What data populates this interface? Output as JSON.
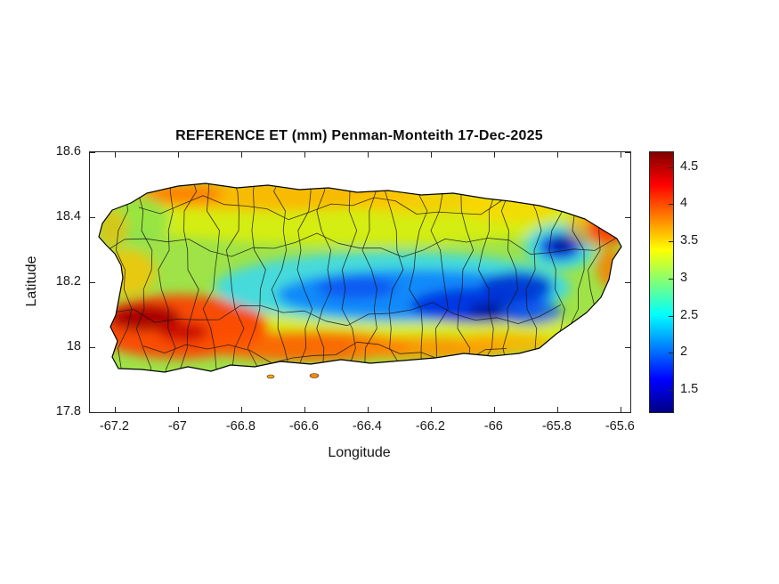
{
  "figure": {
    "title": "REFERENCE ET (mm) Penman-Monteith 17-Dec-2025",
    "xlabel": "Longitude",
    "ylabel": "Latitude"
  },
  "chart_data": {
    "type": "heatmap",
    "title": "REFERENCE ET (mm) Penman-Monteith 17-Dec-2025",
    "variable": "Reference evapotranspiration (mm)",
    "method": "Penman-Monteith",
    "date": "17-Dec-2025",
    "xlabel": "Longitude",
    "ylabel": "Latitude",
    "xlim": [
      -67.28,
      -65.57
    ],
    "ylim": [
      17.8,
      18.6
    ],
    "x_ticks": [
      -67.2,
      -67,
      -66.8,
      -66.6,
      -66.4,
      -66.2,
      -66,
      -65.8,
      -65.6
    ],
    "y_ticks": [
      17.8,
      18,
      18.2,
      18.4,
      18.6
    ],
    "grid": false,
    "geography": {
      "region": "Puerto Rico",
      "boundaries": "municipality outlines"
    },
    "colorbar": {
      "position": "right",
      "colormap": "jet",
      "range": [
        1.2,
        4.7
      ],
      "ticks": [
        1.5,
        2,
        2.5,
        3,
        3.5,
        4,
        4.5
      ],
      "jet_stops": [
        {
          "f": 0.0,
          "c": "#000085"
        },
        {
          "f": 0.125,
          "c": "#0000ff"
        },
        {
          "f": 0.375,
          "c": "#00ffff"
        },
        {
          "f": 0.5,
          "c": "#7dff7a"
        },
        {
          "f": 0.625,
          "c": "#ffff00"
        },
        {
          "f": 0.875,
          "c": "#ff0000"
        },
        {
          "f": 1.0,
          "c": "#800000"
        }
      ]
    },
    "grid_estimate": {
      "lon": [
        -67.2,
        -67.1,
        -67.0,
        -66.9,
        -66.8,
        -66.7,
        -66.6,
        -66.5,
        -66.4,
        -66.3,
        -66.2,
        -66.1,
        -66.0,
        -65.9,
        -65.8,
        -65.7,
        -65.6
      ],
      "lat": [
        18.5,
        18.4,
        18.3,
        18.2,
        18.1,
        18.0,
        17.9
      ],
      "et_mm": [
        [
          null,
          null,
          3.6,
          3.8,
          3.7,
          3.5,
          3.6,
          3.6,
          3.5,
          3.4,
          3.5,
          null,
          null,
          null,
          null,
          null,
          null
        ],
        [
          3.2,
          3.4,
          3.6,
          3.9,
          3.8,
          3.6,
          3.7,
          3.8,
          3.5,
          3.4,
          3.5,
          3.6,
          3.4,
          3.2,
          3.0,
          3.2,
          null
        ],
        [
          3.3,
          3.3,
          3.2,
          3.3,
          3.2,
          3.1,
          3.0,
          2.9,
          3.0,
          3.1,
          3.0,
          2.9,
          2.7,
          1.6,
          2.2,
          3.6,
          4.2
        ],
        [
          3.4,
          3.2,
          3.0,
          2.9,
          2.7,
          2.5,
          2.3,
          2.2,
          2.0,
          2.1,
          2.2,
          2.3,
          2.5,
          2.8,
          3.1,
          3.6,
          null
        ],
        [
          3.9,
          4.0,
          3.6,
          3.1,
          2.7,
          2.4,
          2.1,
          1.8,
          1.6,
          1.5,
          1.9,
          2.2,
          2.7,
          3.1,
          3.5,
          null,
          null
        ],
        [
          4.2,
          4.6,
          4.4,
          4.1,
          3.9,
          3.7,
          3.5,
          3.2,
          2.8,
          2.5,
          3.0,
          3.4,
          3.7,
          3.8,
          null,
          null,
          null
        ],
        [
          null,
          4.3,
          4.2,
          4.1,
          4.0,
          3.8,
          3.7,
          3.6,
          null,
          null,
          null,
          null,
          null,
          null,
          null,
          null,
          null
        ]
      ]
    },
    "features": [
      {
        "name": "central-mountains-low-et",
        "approx_location": "18.05-18.25N, 66.0-66.8W",
        "et_mm": "1.5-2.5"
      },
      {
        "name": "el-yunque-low-et",
        "approx_location": "18.3N, 65.8W",
        "et_mm": "1.5-2.0"
      },
      {
        "name": "southwest-high-et",
        "approx_location": "17.95-18.1N, 66.9-67.2W",
        "et_mm": "4.3-4.7"
      },
      {
        "name": "south-coast-high-et",
        "approx_location": "south coastal strip",
        "et_mm": "3.8-4.4"
      },
      {
        "name": "north-coast-moderate-et",
        "approx_location": "north coastal strip",
        "et_mm": "3.5-4.0"
      },
      {
        "name": "east-tip-high-et",
        "approx_location": "18.35N, 65.65W",
        "et_mm": "4.0-4.5"
      }
    ]
  }
}
